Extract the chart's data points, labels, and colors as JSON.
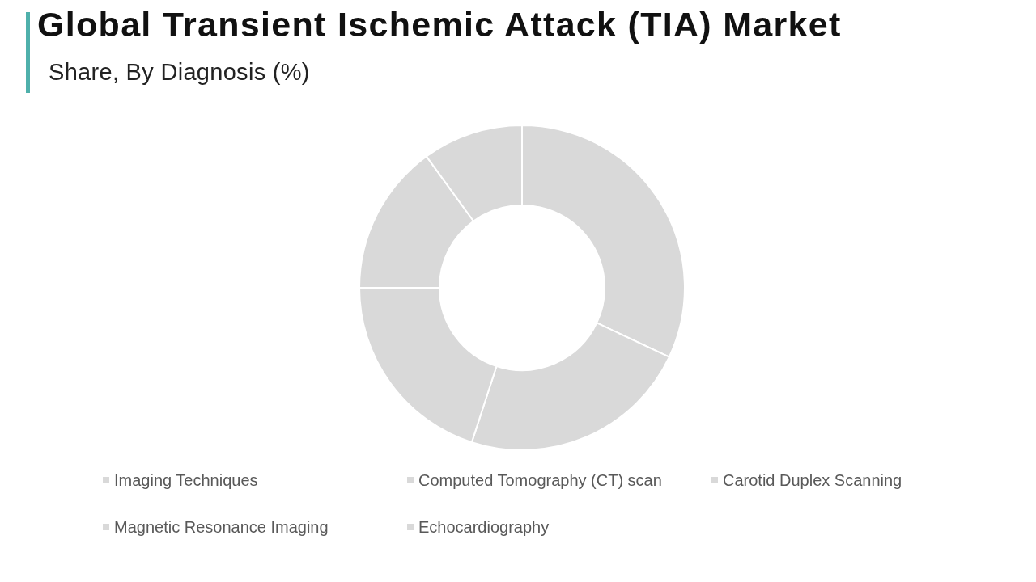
{
  "chart_data": {
    "type": "donut",
    "title": "Global Transient Ischemic Attack (TIA) Market",
    "subtitle": "Share, By Diagnosis (%)",
    "categories": [
      "Imaging Techniques",
      "Computed Tomography (CT) scan",
      "Carotid Duplex Scanning",
      "Magnetic Resonance Imaging",
      "Echocardiography"
    ],
    "values": [
      32,
      23,
      20,
      15,
      10
    ],
    "colors": [
      "#d9d9d9",
      "#d9d9d9",
      "#d9d9d9",
      "#d9d9d9",
      "#d9d9d9"
    ],
    "legend": "bottom"
  }
}
